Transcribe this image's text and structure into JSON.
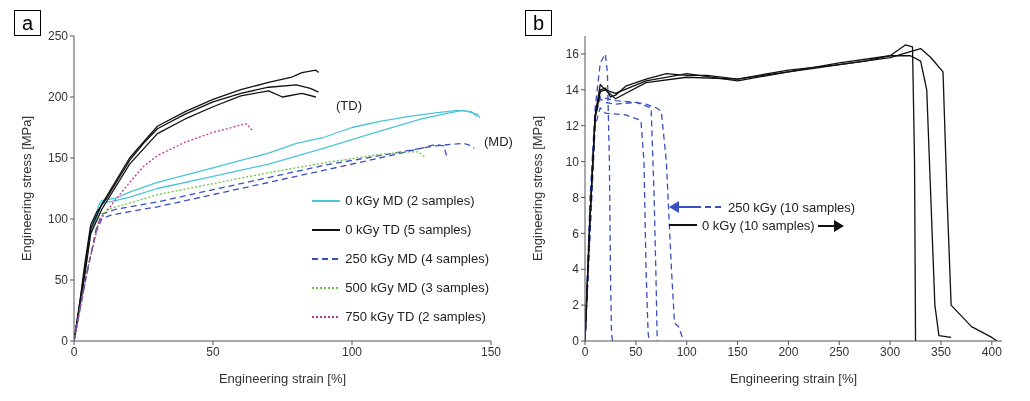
{
  "chart_data": [
    {
      "type": "line",
      "title": "a",
      "xlabel": "Engineering strain [%]",
      "ylabel": "Engineering stress [MPa]",
      "xlim": [
        0,
        150
      ],
      "ylim": [
        0,
        250
      ],
      "xticks": [
        0,
        50,
        100,
        150
      ],
      "yticks": [
        0,
        50,
        100,
        150,
        200,
        250
      ],
      "grid": false,
      "legend": "bottom right",
      "marker": "none",
      "annotations": [
        "(TD)",
        "(MD)"
      ],
      "series": [
        {
          "name": "0 kGy MD (2 samples)",
          "color": "#4cc3d6",
          "line_style": "solid",
          "x": [
            0,
            3,
            6,
            9,
            10,
            12,
            15,
            20,
            30,
            40,
            50,
            60,
            70,
            80,
            90,
            100,
            110,
            120,
            130,
            138,
            143,
            145
          ],
          "values": [
            0,
            45,
            90,
            112,
            115,
            116,
            117,
            122,
            130,
            136,
            142,
            148,
            154,
            162,
            167,
            175,
            180,
            184,
            187,
            189,
            188,
            184
          ]
        },
        {
          "color": "#4cc3d6",
          "line_style": "solid",
          "x": [
            0,
            3,
            6,
            10,
            15,
            20,
            30,
            50,
            70,
            90,
            110,
            125,
            135,
            140,
            145,
            146
          ],
          "values": [
            0,
            42,
            88,
            113,
            115,
            118,
            125,
            135,
            145,
            158,
            172,
            182,
            187,
            189,
            186,
            183
          ]
        },
        {
          "name": "0 kGy TD (5 samples)",
          "color": "#111111",
          "line_style": "solid",
          "x": [
            0,
            2,
            4,
            6,
            8,
            12,
            16,
            20,
            25,
            30,
            40,
            50,
            60,
            70,
            80,
            85,
            88
          ],
          "values": [
            0,
            30,
            65,
            95,
            105,
            118,
            133,
            148,
            162,
            174,
            186,
            196,
            203,
            208,
            210,
            207,
            204
          ]
        },
        {
          "color": "#111111",
          "line_style": "solid",
          "x": [
            0,
            3,
            6,
            10,
            20,
            30,
            40,
            50,
            60,
            70,
            78,
            82,
            87,
            88
          ],
          "values": [
            0,
            45,
            92,
            112,
            150,
            176,
            188,
            198,
            206,
            212,
            216,
            220,
            222,
            220
          ]
        },
        {
          "color": "#111111",
          "line_style": "solid",
          "x": [
            0,
            3,
            6,
            10,
            20,
            30,
            40,
            50,
            60,
            70,
            75,
            82,
            87
          ],
          "values": [
            0,
            40,
            88,
            108,
            145,
            170,
            182,
            192,
            201,
            205,
            200,
            203,
            200
          ]
        },
        {
          "name": "250 kGy MD (4 samples)",
          "color": "#3b4fc4",
          "line_style": "dashed",
          "x": [
            0,
            4,
            8,
            10,
            13,
            20,
            30,
            50,
            70,
            90,
            110,
            125,
            130,
            133,
            134
          ],
          "values": [
            0,
            50,
            90,
            100,
            103,
            106,
            110,
            120,
            130,
            140,
            150,
            158,
            161,
            160,
            152
          ]
        },
        {
          "color": "#3b4fc4",
          "line_style": "dashed",
          "x": [
            0,
            4,
            8,
            10,
            15,
            30,
            50,
            70,
            90,
            110,
            130,
            140,
            143,
            144
          ],
          "values": [
            0,
            48,
            92,
            104,
            108,
            114,
            124,
            134,
            144,
            152,
            160,
            162,
            160,
            158
          ]
        },
        {
          "name": "500 kGy MD (3 samples)",
          "color": "#6cc644",
          "line_style": "dotted",
          "x": [
            0,
            5,
            9,
            12,
            20,
            30,
            50,
            70,
            90,
            110,
            120,
            124,
            126
          ],
          "values": [
            0,
            60,
            100,
            108,
            113,
            120,
            129,
            138,
            146,
            153,
            155,
            155,
            151
          ]
        },
        {
          "name": "750 kGy TD (2 samples)",
          "color": "#c8368c",
          "line_style": "dotted",
          "x": [
            0,
            5,
            9,
            14,
            20,
            25,
            30,
            40,
            50,
            60,
            62,
            64
          ],
          "values": [
            0,
            60,
            98,
            113,
            130,
            143,
            152,
            163,
            171,
            177,
            178,
            173
          ]
        }
      ]
    },
    {
      "type": "line",
      "title": "b",
      "xlabel": "Engineering strain [%]",
      "ylabel": "Engineering stress [MPa]",
      "xlim": [
        0,
        410
      ],
      "ylim": [
        0,
        17
      ],
      "xticks": [
        0,
        50,
        100,
        150,
        200,
        250,
        300,
        350,
        400
      ],
      "yticks": [
        0,
        2,
        4,
        6,
        8,
        10,
        12,
        14,
        16
      ],
      "grid": false,
      "legend": "center",
      "marker": "none",
      "series": [
        {
          "name": "250 kGy (10 samples)",
          "color": "#3b4fc4",
          "line_style": "dashed",
          "x": [
            0,
            5,
            10,
            15,
            20,
            22,
            24,
            25,
            26,
            27
          ],
          "values": [
            0,
            8,
            13,
            15.5,
            16,
            15,
            10,
            4,
            0.5,
            0
          ]
        },
        {
          "color": "#3b4fc4",
          "line_style": "dashed",
          "x": [
            0,
            10,
            15,
            20,
            30,
            50,
            60,
            70,
            75,
            80,
            85,
            88,
            92,
            97
          ],
          "values": [
            0,
            12.5,
            13.5,
            13.3,
            13.2,
            13.3,
            13.2,
            13,
            12.8,
            10,
            4,
            1,
            0.8,
            0
          ]
        },
        {
          "color": "#3b4fc4",
          "line_style": "dashed",
          "x": [
            0,
            10,
            15,
            20,
            40,
            55,
            58,
            60,
            62,
            63
          ],
          "values": [
            0,
            12,
            13,
            12.7,
            12.6,
            12.3,
            10,
            4,
            0.5,
            0
          ]
        },
        {
          "color": "#3b4fc4",
          "line_style": "dashed",
          "x": [
            0,
            10,
            15,
            30,
            50,
            65,
            68,
            70,
            71
          ],
          "values": [
            0,
            12.8,
            13.6,
            13.4,
            13.3,
            13,
            8,
            3,
            0
          ]
        },
        {
          "name": "0 kGy (10 samples)",
          "color": "#111111",
          "line_style": "solid",
          "x": [
            0,
            5,
            10,
            15,
            20,
            25,
            30,
            40,
            60,
            80,
            100,
            120,
            150,
            175,
            200,
            225,
            250,
            275,
            300,
            320,
            330,
            336,
            340,
            344,
            348,
            360
          ],
          "values": [
            0,
            7,
            12.5,
            14,
            14.1,
            13.6,
            13.7,
            14.2,
            14.6,
            14.9,
            14.8,
            14.8,
            14.6,
            14.8,
            15,
            15.2,
            15.4,
            15.6,
            15.9,
            15.9,
            15.6,
            14,
            8,
            2,
            0.3,
            0.2
          ]
        },
        {
          "color": "#111111",
          "line_style": "solid",
          "x": [
            0,
            5,
            10,
            15,
            20,
            30,
            60,
            100,
            150,
            200,
            250,
            300,
            315,
            322,
            324,
            325
          ],
          "values": [
            0,
            7,
            12.6,
            14.3,
            14,
            13.8,
            14.5,
            14.9,
            14.5,
            15,
            15.5,
            15.9,
            16.5,
            16.4,
            10,
            0
          ]
        },
        {
          "color": "#111111",
          "line_style": "solid",
          "x": [
            0,
            5,
            10,
            15,
            20,
            30,
            60,
            100,
            150,
            200,
            250,
            300,
            330,
            340,
            352,
            356,
            360,
            380,
            400,
            405
          ],
          "values": [
            0,
            7,
            12.4,
            13.9,
            14,
            13.5,
            14.4,
            14.7,
            14.6,
            15.1,
            15.4,
            15.8,
            16.3,
            15.8,
            15,
            8,
            2,
            0.8,
            0.2,
            0
          ]
        }
      ]
    }
  ]
}
